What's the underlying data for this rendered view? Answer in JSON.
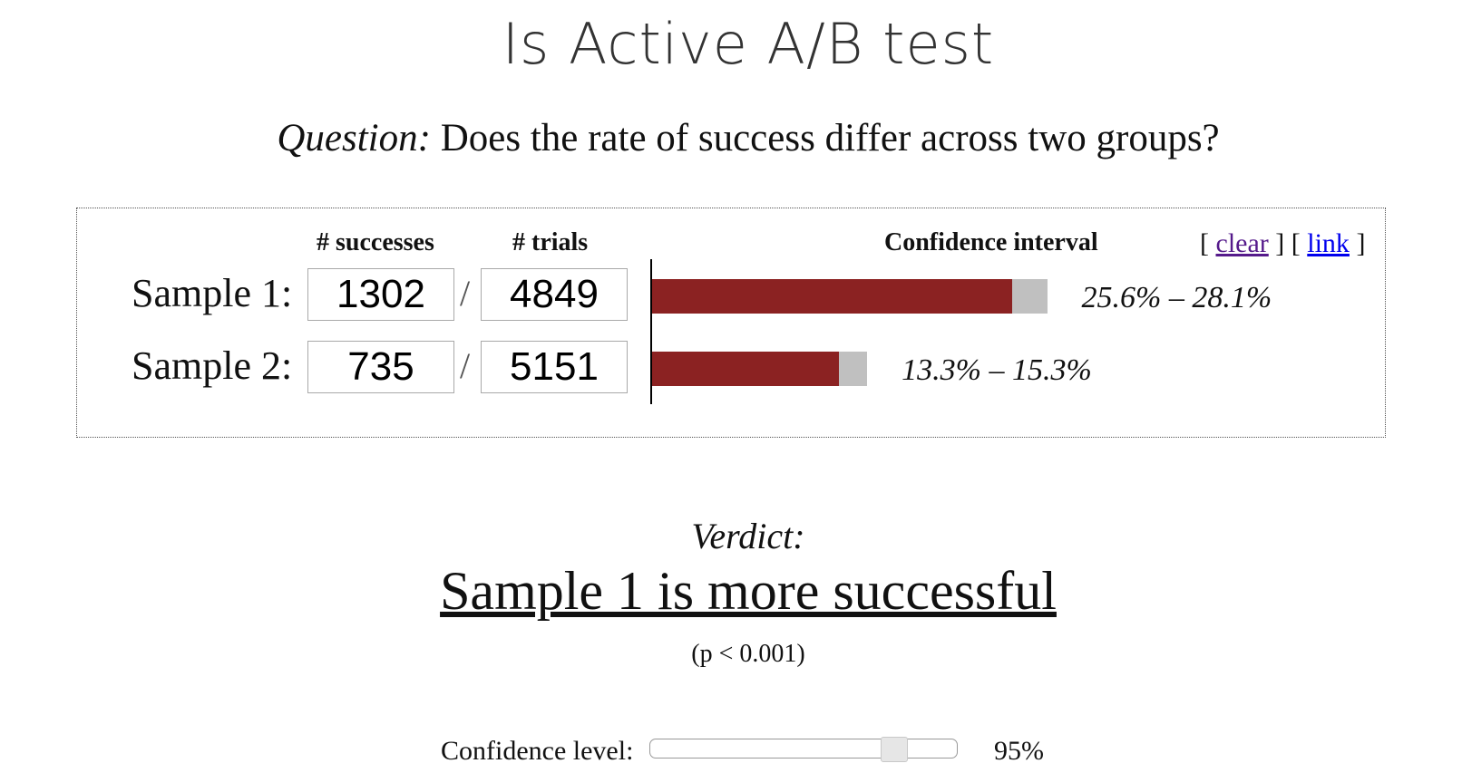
{
  "title": "Is Active A/B test",
  "question": {
    "label": "Question:",
    "text": " Does the rate of success differ across two groups?"
  },
  "table": {
    "successes_header": "# successes",
    "trials_header": "# trials",
    "ci_header": "Confidence interval",
    "links": {
      "clear": "clear",
      "link": "link"
    },
    "samples": [
      {
        "label": "Sample 1:",
        "successes": "1302",
        "trials": "4849",
        "ci_text": "25.6% – 28.1%",
        "ci_low": 0.256,
        "ci_high": 0.281
      },
      {
        "label": "Sample 2:",
        "successes": "735",
        "trials": "5151",
        "ci_text": "13.3% – 15.3%",
        "ci_low": 0.133,
        "ci_high": 0.153
      }
    ],
    "bar_fill_color": "#8b2222",
    "bar_range_color": "#c0c0c0"
  },
  "verdict": {
    "label": "Verdict:",
    "text": "Sample 1 is more successful",
    "pvalue": "(p < 0.001)"
  },
  "confidence": {
    "label": "Confidence level:",
    "value_text": "95%",
    "slider_fraction": 0.79
  }
}
